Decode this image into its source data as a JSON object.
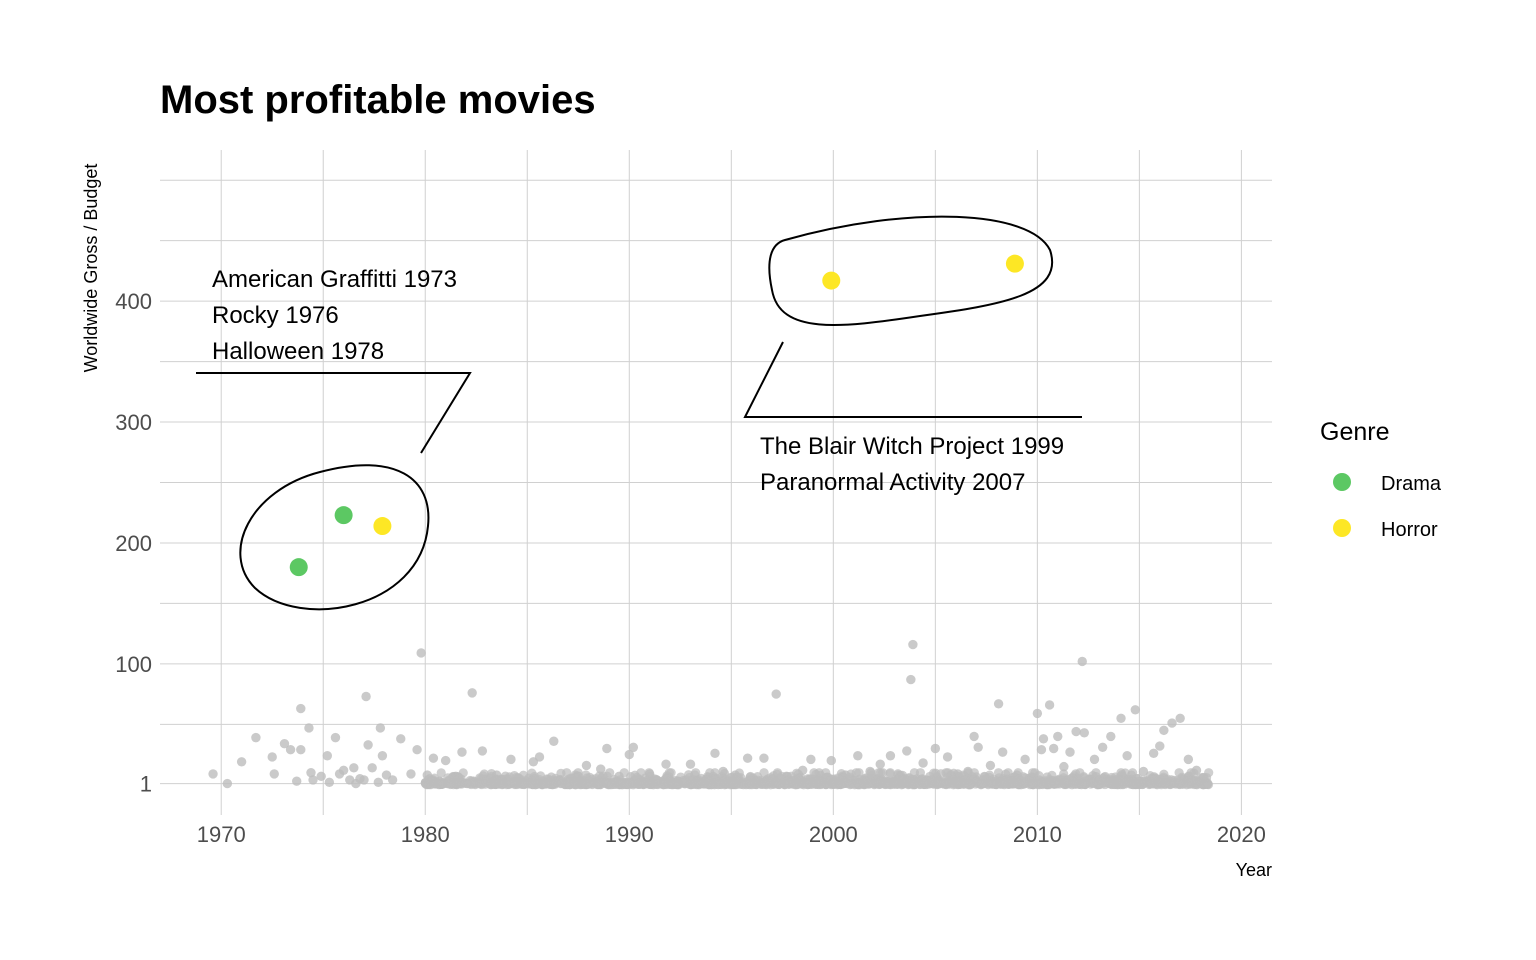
{
  "colors": {
    "drama": "#5cc863",
    "horror": "#fde725",
    "other": "#bdbdbd",
    "grid": "#d0d0d0",
    "text": "#000000",
    "tick": "#4d4d4d"
  },
  "chart_data": {
    "type": "scatter",
    "title": "Most profitable movies",
    "xlabel": "Year",
    "ylabel": "Worldwide Gross / Budget",
    "xlim": [
      1967,
      2021.5
    ],
    "ylim": [
      -25,
      525
    ],
    "x_ticks": [
      1970,
      1980,
      1990,
      2000,
      2010,
      2020
    ],
    "y_ticks": [
      1,
      100,
      200,
      300,
      400
    ],
    "x_tick_labels": [
      "1970",
      "1980",
      "1990",
      "2000",
      "2010",
      "2020"
    ],
    "y_tick_labels": [
      "1",
      "100",
      "200",
      "300",
      "400"
    ],
    "grid": true,
    "legend": {
      "title": "Genre",
      "position": "right",
      "items": [
        {
          "name": "Drama",
          "color": "#5cc863"
        },
        {
          "name": "Horror",
          "color": "#fde725"
        }
      ]
    },
    "highlighted": [
      {
        "title": "American Graffitti",
        "year": 1973.8,
        "y": 180,
        "genre": "Drama"
      },
      {
        "title": "Rocky",
        "year": 1976,
        "y": 223,
        "genre": "Drama"
      },
      {
        "title": "Halloween",
        "year": 1977.9,
        "y": 214,
        "genre": "Horror"
      },
      {
        "title": "The Blair Witch Project",
        "year": 1999.9,
        "y": 417,
        "genre": "Horror"
      },
      {
        "title": "Paranormal Activity",
        "year": 2008.9,
        "y": 431,
        "genre": "Horror"
      }
    ],
    "annotations": [
      {
        "lines": [
          "American Graffitti 1973",
          "Rocky 1976",
          "Halloween 1978"
        ]
      },
      {
        "lines": [
          "The Blair Witch Project 1999",
          "Paranormal Activity 2007"
        ]
      }
    ],
    "other_points": [
      [
        1969.6,
        9
      ],
      [
        1970.3,
        1
      ],
      [
        1971.0,
        19
      ],
      [
        1971.7,
        39
      ],
      [
        1972.5,
        23
      ],
      [
        1972.6,
        9
      ],
      [
        1973.1,
        34
      ],
      [
        1973.4,
        29
      ],
      [
        1973.7,
        3
      ],
      [
        1973.9,
        63
      ],
      [
        1973.9,
        29
      ],
      [
        1974.3,
        47
      ],
      [
        1974.4,
        10
      ],
      [
        1974.5,
        4
      ],
      [
        1974.9,
        7
      ],
      [
        1975.2,
        24
      ],
      [
        1975.3,
        2
      ],
      [
        1975.6,
        39
      ],
      [
        1975.8,
        9
      ],
      [
        1976.0,
        12
      ],
      [
        1976.3,
        4
      ],
      [
        1976.5,
        14
      ],
      [
        1976.6,
        1
      ],
      [
        1976.8,
        5
      ],
      [
        1977.0,
        4
      ],
      [
        1977.1,
        73
      ],
      [
        1977.2,
        33
      ],
      [
        1977.4,
        14
      ],
      [
        1977.7,
        2
      ],
      [
        1977.8,
        47
      ],
      [
        1977.9,
        24
      ],
      [
        1978.1,
        8
      ],
      [
        1978.4,
        4
      ],
      [
        1978.8,
        38
      ],
      [
        1979.3,
        9
      ],
      [
        1979.6,
        29
      ],
      [
        1979.8,
        109
      ],
      [
        1980.1,
        8
      ],
      [
        1980.4,
        22
      ],
      [
        1981.0,
        20
      ],
      [
        1981.5,
        7
      ],
      [
        1981.8,
        27
      ],
      [
        1982.3,
        76
      ],
      [
        1982.8,
        28
      ],
      [
        1983.5,
        8
      ],
      [
        1984.2,
        21
      ],
      [
        1984.6,
        4
      ],
      [
        1985.3,
        19
      ],
      [
        1985.6,
        23
      ],
      [
        1986.3,
        36
      ],
      [
        1987.4,
        6
      ],
      [
        1987.9,
        16
      ],
      [
        1988.6,
        13
      ],
      [
        1988.9,
        30
      ],
      [
        1989.5,
        7
      ],
      [
        1990.0,
        25
      ],
      [
        1990.2,
        31
      ],
      [
        1991.0,
        9
      ],
      [
        1991.8,
        17
      ],
      [
        1992.4,
        3
      ],
      [
        1993.0,
        17
      ],
      [
        1993.8,
        4
      ],
      [
        1994.2,
        26
      ],
      [
        1994.6,
        11
      ],
      [
        1995.2,
        8
      ],
      [
        1995.8,
        22
      ],
      [
        1996.2,
        3
      ],
      [
        1996.6,
        22
      ],
      [
        1997.2,
        75
      ],
      [
        1997.7,
        7
      ],
      [
        1998.5,
        12
      ],
      [
        1998.9,
        21
      ],
      [
        1999.3,
        5
      ],
      [
        1999.9,
        20
      ],
      [
        2000.6,
        8
      ],
      [
        2001.2,
        24
      ],
      [
        2001.8,
        11
      ],
      [
        2002.3,
        17
      ],
      [
        2002.8,
        24
      ],
      [
        2003.3,
        6
      ],
      [
        2003.6,
        28
      ],
      [
        2003.8,
        87
      ],
      [
        2003.9,
        116
      ],
      [
        2004.4,
        18
      ],
      [
        2004.8,
        4
      ],
      [
        2005.0,
        30
      ],
      [
        2005.6,
        23
      ],
      [
        2006.1,
        9
      ],
      [
        2006.6,
        11
      ],
      [
        2006.9,
        40
      ],
      [
        2007.1,
        31
      ],
      [
        2007.7,
        16
      ],
      [
        2008.1,
        67
      ],
      [
        2008.3,
        27
      ],
      [
        2009.0,
        8
      ],
      [
        2009.4,
        21
      ],
      [
        2009.8,
        6
      ],
      [
        2010.0,
        59
      ],
      [
        2010.2,
        29
      ],
      [
        2010.3,
        38
      ],
      [
        2010.6,
        66
      ],
      [
        2010.8,
        30
      ],
      [
        2011.0,
        40
      ],
      [
        2011.3,
        15
      ],
      [
        2011.6,
        27
      ],
      [
        2011.9,
        44
      ],
      [
        2012.2,
        102
      ],
      [
        2012.3,
        43
      ],
      [
        2012.8,
        21
      ],
      [
        2013.2,
        31
      ],
      [
        2013.6,
        40
      ],
      [
        2014.1,
        55
      ],
      [
        2014.4,
        24
      ],
      [
        2014.8,
        62
      ],
      [
        2015.2,
        11
      ],
      [
        2015.7,
        26
      ],
      [
        2016.0,
        32
      ],
      [
        2016.2,
        45
      ],
      [
        2016.6,
        51
      ],
      [
        2017.0,
        55
      ],
      [
        2017.4,
        21
      ],
      [
        2017.8,
        12
      ],
      [
        2018.2,
        3
      ]
    ]
  }
}
